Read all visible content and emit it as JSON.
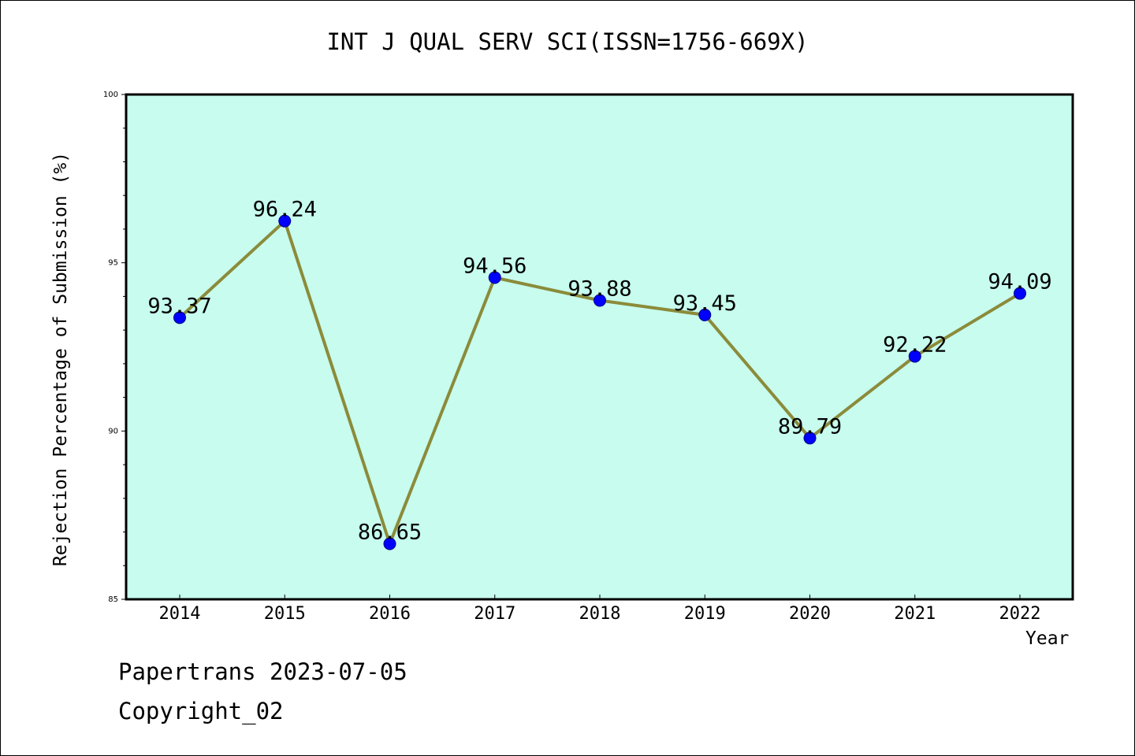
{
  "title": "INT J QUAL SERV SCI(ISSN=1756-669X)",
  "footer": {
    "line1": "Papertrans 2023-07-05",
    "line2": "Copyright_02"
  },
  "colors": {
    "plot_background": "#c7fcee",
    "line": "#8b8b3a",
    "marker": "#0000ff"
  },
  "chart_data": {
    "type": "line",
    "x": [
      "2014",
      "2015",
      "2016",
      "2017",
      "2018",
      "2019",
      "2020",
      "2021",
      "2022"
    ],
    "series": [
      {
        "values": [
          93.37,
          96.24,
          86.65,
          94.56,
          93.88,
          93.45,
          89.79,
          92.22,
          94.09
        ],
        "labels": [
          "93.37",
          "96.24",
          "86.65",
          "94.56",
          "93.88",
          "93.45",
          "89.79",
          "92.22",
          "94.09"
        ]
      }
    ],
    "xlabel": "Year",
    "ylabel": "Rejection Percentage of Submission (%)",
    "ylim": [
      85,
      100
    ],
    "yticks": [
      "85",
      "90",
      "95",
      "100"
    ],
    "grid": false,
    "legend": "none"
  }
}
